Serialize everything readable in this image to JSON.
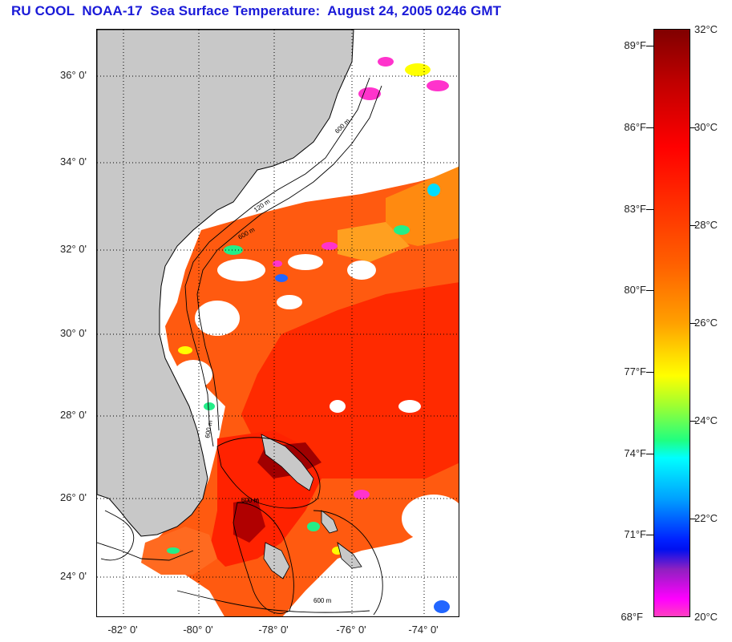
{
  "title": "RU COOL  NOAA-17  Sea Surface Temperature:  August 24, 2005 0246 GMT",
  "map": {
    "latitude_labels": [
      "36° 0'",
      "34° 0'",
      "32° 0'",
      "30° 0'",
      "28° 0'",
      "26° 0'",
      "24° 0'"
    ],
    "longitude_labels": [
      "-82° 0'",
      "-80° 0'",
      "-78° 0'",
      "-76° 0'",
      "-74° 0'"
    ],
    "contour_labels": [
      "120 m",
      "600 m",
      "600 m",
      "600 m",
      "600 m",
      "600 m"
    ],
    "colors": {
      "land": "#c8c8c8",
      "cloud_mask": "#ffffff",
      "contour": "#000000",
      "graticule": "#000000"
    }
  },
  "colorbar": {
    "fahrenheit_labels": [
      "89°F",
      "86°F",
      "83°F",
      "80°F",
      "77°F",
      "74°F",
      "71°F",
      "68°F"
    ],
    "celsius_labels": [
      "32°C",
      "30°C",
      "28°C",
      "26°C",
      "24°C",
      "22°C",
      "20°C"
    ],
    "range_celsius": [
      20,
      32
    ],
    "colors_high_to_low": [
      "#800000",
      "#ff0000",
      "#ff6000",
      "#ffa000",
      "#ffff00",
      "#20ff80",
      "#00ffff",
      "#0020ff",
      "#9020c0",
      "#ff00ff"
    ]
  }
}
